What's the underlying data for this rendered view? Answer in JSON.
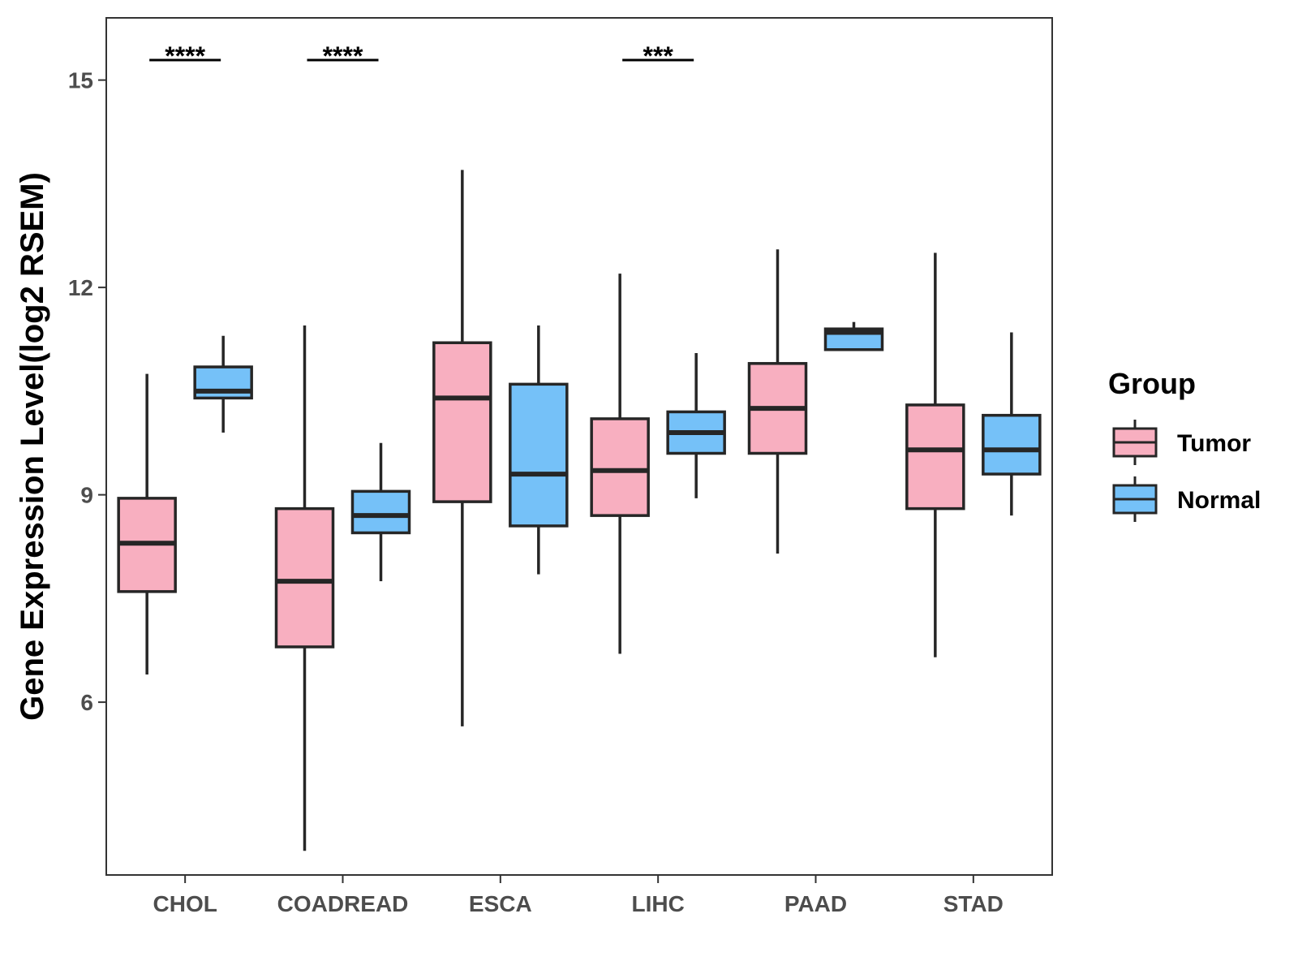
{
  "chart_data": {
    "type": "boxplot",
    "title": "",
    "xlabel": "",
    "ylabel": "Gene Expression Level(log2 RSEM)",
    "ylim": [
      3.5,
      15.9
    ],
    "yticks": [
      6,
      9,
      12,
      15
    ],
    "categories": [
      "CHOL",
      "COADREAD",
      "ESCA",
      "LIHC",
      "PAAD",
      "STAD"
    ],
    "legend": {
      "title": "Group",
      "position": "right"
    },
    "series": [
      {
        "name": "Tumor",
        "color": "#F8AFC0",
        "boxes": [
          {
            "min": 6.4,
            "q1": 7.6,
            "median": 8.3,
            "q3": 8.95,
            "max": 10.75
          },
          {
            "min": 3.85,
            "q1": 6.8,
            "median": 7.75,
            "q3": 8.8,
            "max": 11.45
          },
          {
            "min": 5.65,
            "q1": 8.9,
            "median": 10.4,
            "q3": 11.2,
            "max": 13.7
          },
          {
            "min": 6.7,
            "q1": 8.7,
            "median": 9.35,
            "q3": 10.1,
            "max": 12.2
          },
          {
            "min": 8.15,
            "q1": 9.6,
            "median": 10.25,
            "q3": 10.9,
            "max": 12.55
          },
          {
            "min": 6.65,
            "q1": 8.8,
            "median": 9.65,
            "q3": 10.3,
            "max": 12.5
          }
        ]
      },
      {
        "name": "Normal",
        "color": "#75C1F8",
        "boxes": [
          {
            "min": 9.9,
            "q1": 10.4,
            "median": 10.5,
            "q3": 10.85,
            "max": 11.3
          },
          {
            "min": 7.75,
            "q1": 8.45,
            "median": 8.7,
            "q3": 9.05,
            "max": 9.75
          },
          {
            "min": 7.85,
            "q1": 8.55,
            "median": 9.3,
            "q3": 10.6,
            "max": 11.45
          },
          {
            "min": 8.95,
            "q1": 9.6,
            "median": 9.9,
            "q3": 10.2,
            "max": 11.05
          },
          {
            "min": 11.1,
            "q1": 11.1,
            "median": 11.35,
            "q3": 11.4,
            "max": 11.5
          },
          {
            "min": 8.7,
            "q1": 9.3,
            "median": 9.65,
            "q3": 10.15,
            "max": 11.35
          }
        ]
      }
    ],
    "significance": [
      {
        "category": "CHOL",
        "label": "****"
      },
      {
        "category": "COADREAD",
        "label": "****"
      },
      {
        "category": "LIHC",
        "label": "***"
      }
    ]
  }
}
